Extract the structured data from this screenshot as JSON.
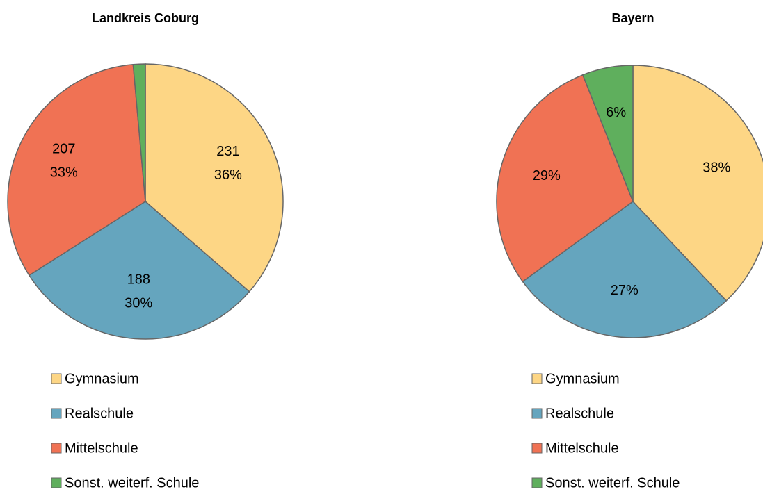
{
  "chart_data": [
    {
      "type": "pie",
      "title": "Landkreis Coburg",
      "categories": [
        "Gymnasium",
        "Realschule",
        "Mittelschule",
        "Sonst. weiterf. Schule"
      ],
      "values": [
        231,
        188,
        207,
        9
      ],
      "value_labels": [
        [
          "231",
          "36%"
        ],
        [
          "188",
          "30%"
        ],
        [
          "207",
          "33%"
        ],
        null
      ],
      "colors": [
        "#FDD685",
        "#65A5BE",
        "#F07254",
        "#5FAF5D"
      ]
    },
    {
      "type": "pie",
      "title": "Bayern",
      "categories": [
        "Gymnasium",
        "Realschule",
        "Mittelschule",
        "Sonst. weiterf. Schule"
      ],
      "values": [
        38,
        27,
        29,
        6
      ],
      "value_labels": [
        "38%",
        "27%",
        "29%",
        "6%"
      ],
      "colors": [
        "#FDD685",
        "#65A5BE",
        "#F07254",
        "#5FAF5D"
      ]
    }
  ]
}
